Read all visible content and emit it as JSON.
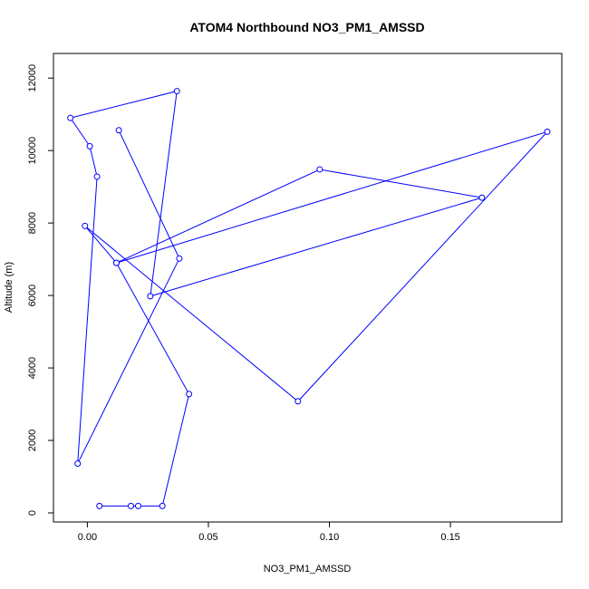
{
  "chart_data": {
    "type": "line",
    "title": "ATOM4 Northbound NO3_PM1_AMSSD",
    "xlabel": "NO3_PM1_AMSSD",
    "ylabel": "Altitude (m)",
    "xlim": [
      -0.014,
      0.196
    ],
    "ylim": [
      -250,
      12680
    ],
    "xticks": [
      0.0,
      0.05,
      0.1,
      0.15
    ],
    "xtick_labels": [
      "0.00",
      "0.05",
      "0.10",
      "0.15"
    ],
    "yticks": [
      0,
      2000,
      4000,
      6000,
      8000,
      10000,
      12000
    ],
    "ytick_labels": [
      "0",
      "2000",
      "4000",
      "6000",
      "8000",
      "10000",
      "12000"
    ],
    "grid": false,
    "series": [
      {
        "color": "#0000ff",
        "x": [
          0.005,
          0.018,
          0.021,
          0.031,
          0.042,
          0.012,
          -0.001,
          0.087,
          0.19,
          0.012,
          0.096,
          0.163,
          0.026,
          0.037,
          -0.007,
          0.001,
          0.004,
          -0.004,
          0.038,
          0.013
        ],
        "y": [
          190,
          190,
          190,
          190,
          3280,
          6900,
          7920,
          3080,
          10520,
          6900,
          9480,
          8700,
          5980,
          11640,
          10900,
          10120,
          9280,
          1360,
          7020,
          10560
        ]
      }
    ]
  }
}
